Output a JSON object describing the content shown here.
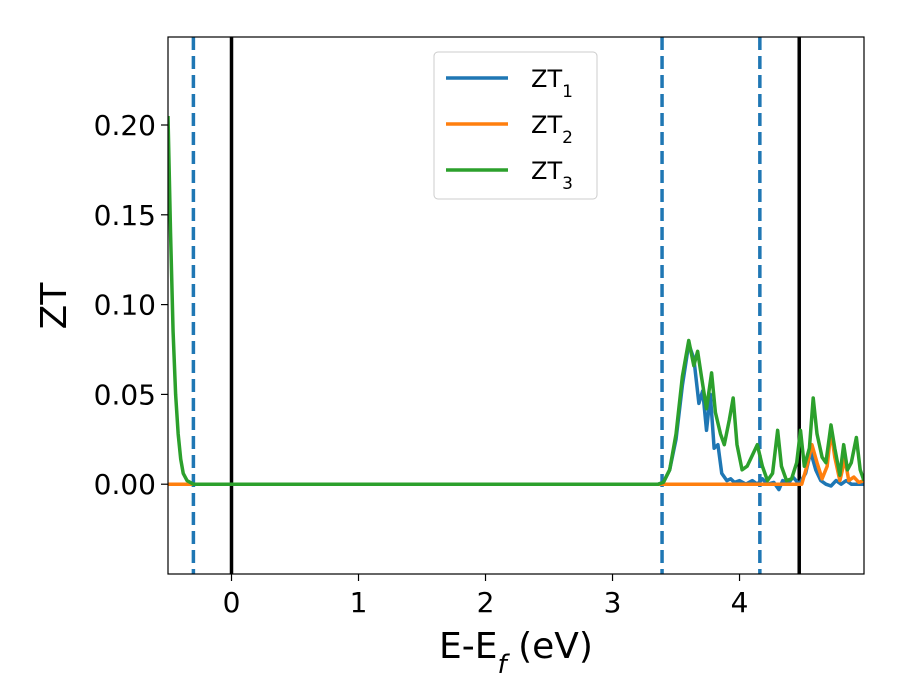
{
  "chart_data": {
    "type": "line",
    "xlabel": "E-E",
    "xlabel_sub": "f",
    "xlabel_suffix": " (eV)",
    "ylabel": "ZT",
    "xlim": [
      -0.5,
      4.98
    ],
    "ylim": [
      -0.05,
      0.249
    ],
    "xticks": [
      0,
      1,
      2,
      3,
      4
    ],
    "yticks": [
      0.0,
      0.05,
      0.1,
      0.15,
      0.2
    ],
    "xtick_labels": [
      "0",
      "1",
      "2",
      "3",
      "4"
    ],
    "ytick_labels": [
      "0.00",
      "0.05",
      "0.10",
      "0.15",
      "0.20"
    ],
    "grid": false,
    "legend_position": "top-center",
    "vlines": [
      {
        "x": -0.3,
        "style": "dashed",
        "color": "#1f77b4"
      },
      {
        "x": 0.0,
        "style": "solid",
        "color": "#000000"
      },
      {
        "x": 3.39,
        "style": "dashed",
        "color": "#1f77b4"
      },
      {
        "x": 4.16,
        "style": "dashed",
        "color": "#1f77b4"
      },
      {
        "x": 4.47,
        "style": "solid",
        "color": "#000000"
      }
    ],
    "series": [
      {
        "name": "ZT",
        "sub": "1",
        "color": "#1f77b4",
        "points": [
          [
            -0.5,
            0.0
          ],
          [
            3.36,
            0.0
          ],
          [
            3.4,
            0.001
          ],
          [
            3.45,
            0.008
          ],
          [
            3.5,
            0.025
          ],
          [
            3.55,
            0.055
          ],
          [
            3.6,
            0.078
          ],
          [
            3.64,
            0.07
          ],
          [
            3.68,
            0.045
          ],
          [
            3.71,
            0.052
          ],
          [
            3.74,
            0.03
          ],
          [
            3.77,
            0.05
          ],
          [
            3.8,
            0.02
          ],
          [
            3.83,
            0.022
          ],
          [
            3.86,
            0.006
          ],
          [
            3.9,
            0.002
          ],
          [
            3.93,
            0.003
          ],
          [
            3.96,
            0.001
          ],
          [
            4.0,
            0.002
          ],
          [
            4.05,
            0.0
          ],
          [
            4.1,
            0.002
          ],
          [
            4.14,
            0.0
          ],
          [
            4.18,
            0.003
          ],
          [
            4.22,
            0.0
          ],
          [
            4.27,
            0.001
          ],
          [
            4.31,
            -0.003
          ],
          [
            4.34,
            0.002
          ],
          [
            4.38,
            0.0
          ],
          [
            4.42,
            0.004
          ],
          [
            4.47,
            0.0
          ],
          [
            4.52,
            0.006
          ],
          [
            4.56,
            0.018
          ],
          [
            4.6,
            0.008
          ],
          [
            4.64,
            0.002
          ],
          [
            4.68,
            0.0
          ],
          [
            4.72,
            -0.001
          ],
          [
            4.76,
            0.002
          ],
          [
            4.8,
            0.0
          ],
          [
            4.84,
            0.002
          ],
          [
            4.88,
            0.0
          ],
          [
            4.92,
            0.0
          ],
          [
            4.98,
            0.0
          ]
        ]
      },
      {
        "name": "ZT",
        "sub": "2",
        "color": "#ff7f0e",
        "points": [
          [
            -0.5,
            0.0
          ],
          [
            4.49,
            0.0
          ],
          [
            4.53,
            0.01
          ],
          [
            4.57,
            0.022
          ],
          [
            4.61,
            0.012
          ],
          [
            4.65,
            0.003
          ],
          [
            4.69,
            0.01
          ],
          [
            4.72,
            0.03
          ],
          [
            4.75,
            0.015
          ],
          [
            4.79,
            0.002
          ],
          [
            4.83,
            0.014
          ],
          [
            4.86,
            0.002
          ],
          [
            4.9,
            0.004
          ],
          [
            4.94,
            0.001
          ],
          [
            4.98,
            0.002
          ]
        ]
      },
      {
        "name": "ZT",
        "sub": "3",
        "color": "#2ca02c",
        "points": [
          [
            -0.5,
            0.205
          ],
          [
            -0.48,
            0.14
          ],
          [
            -0.46,
            0.085
          ],
          [
            -0.44,
            0.05
          ],
          [
            -0.42,
            0.028
          ],
          [
            -0.4,
            0.014
          ],
          [
            -0.38,
            0.006
          ],
          [
            -0.35,
            0.002
          ],
          [
            -0.3,
            0.0
          ],
          [
            3.36,
            0.0
          ],
          [
            3.4,
            0.001
          ],
          [
            3.45,
            0.008
          ],
          [
            3.5,
            0.028
          ],
          [
            3.55,
            0.06
          ],
          [
            3.6,
            0.08
          ],
          [
            3.64,
            0.066
          ],
          [
            3.67,
            0.074
          ],
          [
            3.7,
            0.06
          ],
          [
            3.74,
            0.042
          ],
          [
            3.78,
            0.062
          ],
          [
            3.81,
            0.04
          ],
          [
            3.85,
            0.028
          ],
          [
            3.88,
            0.022
          ],
          [
            3.92,
            0.036
          ],
          [
            3.95,
            0.048
          ],
          [
            3.98,
            0.022
          ],
          [
            4.02,
            0.008
          ],
          [
            4.06,
            0.01
          ],
          [
            4.1,
            0.016
          ],
          [
            4.14,
            0.022
          ],
          [
            4.18,
            0.01
          ],
          [
            4.22,
            0.002
          ],
          [
            4.26,
            0.006
          ],
          [
            4.3,
            0.03
          ],
          [
            4.33,
            0.01
          ],
          [
            4.37,
            0.002
          ],
          [
            4.41,
            0.003
          ],
          [
            4.45,
            0.012
          ],
          [
            4.48,
            0.03
          ],
          [
            4.51,
            0.01
          ],
          [
            4.55,
            0.02
          ],
          [
            4.58,
            0.048
          ],
          [
            4.61,
            0.028
          ],
          [
            4.65,
            0.015
          ],
          [
            4.68,
            0.012
          ],
          [
            4.72,
            0.033
          ],
          [
            4.75,
            0.02
          ],
          [
            4.79,
            0.005
          ],
          [
            4.82,
            0.022
          ],
          [
            4.85,
            0.008
          ],
          [
            4.88,
            0.012
          ],
          [
            4.92,
            0.026
          ],
          [
            4.95,
            0.008
          ],
          [
            4.98,
            0.002
          ]
        ]
      }
    ]
  }
}
